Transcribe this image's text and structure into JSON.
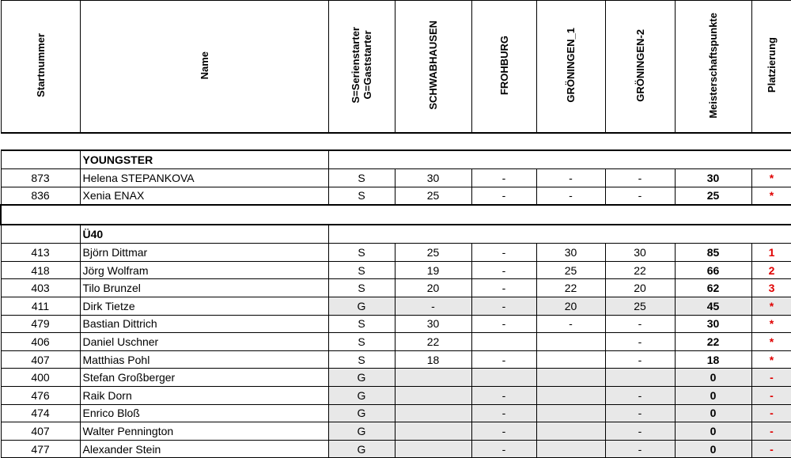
{
  "header": {
    "columns": [
      "Startnummer",
      "Name",
      "S=Serienstarter\nG=Gaststarter",
      "SCHWABHAUSEN",
      "FROHBURG",
      "GRÖNINGEN_1",
      "GRÖNINGEN-2",
      "Meisterschaftspunkte",
      "Platzierung"
    ]
  },
  "sections": [
    {
      "title": "YOUNGSTER",
      "rows": [
        {
          "cells": [
            "873",
            "Helena STEPANKOVA",
            "S",
            "30",
            "-",
            "-",
            "-",
            "30",
            "*"
          ]
        },
        {
          "cells": [
            "836",
            "Xenia ENAX",
            "S",
            "25",
            "-",
            "-",
            "-",
            "25",
            "*"
          ]
        }
      ]
    },
    {
      "title": "Ü40",
      "rows": [
        {
          "cells": [
            "413",
            "Björn Dittmar",
            "S",
            "25",
            "-",
            "30",
            "30",
            "85",
            "1"
          ]
        },
        {
          "cells": [
            "418",
            "Jörg Wolfram",
            "S",
            "19",
            "-",
            "25",
            "22",
            "66",
            "2"
          ]
        },
        {
          "cells": [
            "403",
            "Tilo Brunzel",
            "S",
            "20",
            "-",
            "22",
            "20",
            "62",
            "3"
          ]
        },
        {
          "cells": [
            "411",
            "Dirk Tietze",
            "G",
            "-",
            "-",
            "20",
            "25",
            "45",
            "*"
          ],
          "shaded": true
        },
        {
          "cells": [
            "479",
            "Bastian Dittrich",
            "S",
            "30",
            "-",
            "-",
            "-",
            "30",
            "*"
          ]
        },
        {
          "cells": [
            "406",
            "Daniel Uschner",
            "S",
            "22",
            null,
            null,
            "-",
            "22",
            "*"
          ]
        },
        {
          "cells": [
            "407",
            "Matthias Pohl",
            "S",
            "18",
            "-",
            null,
            "-",
            "18",
            "*"
          ]
        },
        {
          "cells": [
            "400",
            "Stefan Großberger",
            "G",
            null,
            null,
            null,
            null,
            "0",
            "-"
          ],
          "shaded": true
        },
        {
          "cells": [
            "476",
            "Raik Dorn",
            "G",
            null,
            "-",
            null,
            "-",
            "0",
            "-"
          ],
          "shaded": true
        },
        {
          "cells": [
            "474",
            "Enrico Bloß",
            "G",
            null,
            "-",
            null,
            "-",
            "0",
            "-"
          ],
          "shaded": true
        },
        {
          "cells": [
            "407",
            "Walter Pennington",
            "G",
            null,
            "-",
            null,
            "-",
            "0",
            "-"
          ],
          "shaded": true
        },
        {
          "cells": [
            "477",
            "Alexander Stein",
            "G",
            null,
            "-",
            null,
            "-",
            "0",
            "-"
          ],
          "shaded": true
        }
      ]
    }
  ]
}
